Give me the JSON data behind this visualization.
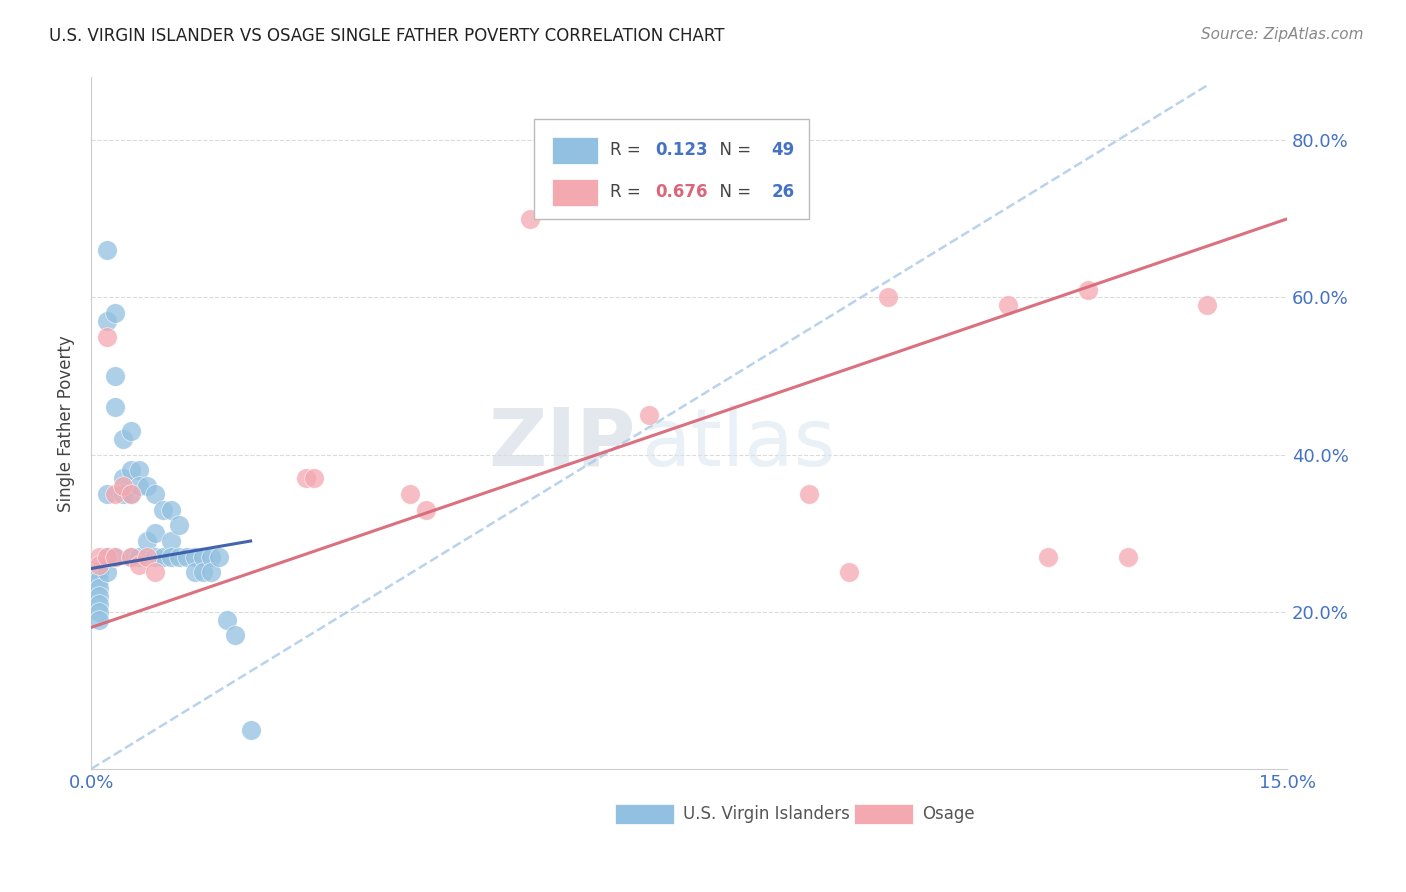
{
  "title": "U.S. VIRGIN ISLANDER VS OSAGE SINGLE FATHER POVERTY CORRELATION CHART",
  "source": "Source: ZipAtlas.com",
  "ylabel": "Single Father Poverty",
  "xlim": [
    0.0,
    0.15
  ],
  "ylim": [
    0.0,
    0.88
  ],
  "xtick_positions": [
    0.0,
    0.03,
    0.06,
    0.09,
    0.12,
    0.15
  ],
  "xticklabels": [
    "0.0%",
    "",
    "",
    "",
    "",
    "15.0%"
  ],
  "ytick_vals_right": [
    0.2,
    0.4,
    0.6,
    0.8
  ],
  "ytick_labels_right": [
    "20.0%",
    "40.0%",
    "60.0%",
    "80.0%"
  ],
  "legend_r1_prefix": "R = ",
  "legend_r1_val": "0.123",
  "legend_n1_prefix": "N = ",
  "legend_n1_val": "49",
  "legend_r2_prefix": "R = ",
  "legend_r2_val": "0.676",
  "legend_n2_prefix": "N = ",
  "legend_n2_val": "26",
  "color_blue": "#92c0e0",
  "color_pink": "#f4a8b0",
  "color_blue_text": "#4472c4",
  "color_pink_text": "#d9667a",
  "color_trend_blue_dash": "#a8c8e8",
  "color_trend_blue_solid": "#3a5ca8",
  "color_trend_pink": "#d96878",
  "watermark_zip": "ZIP",
  "watermark_atlas": "atlas",
  "blue_x": [
    0.001,
    0.001,
    0.001,
    0.001,
    0.001,
    0.001,
    0.001,
    0.002,
    0.002,
    0.002,
    0.002,
    0.002,
    0.003,
    0.003,
    0.003,
    0.003,
    0.004,
    0.004,
    0.004,
    0.005,
    0.005,
    0.005,
    0.005,
    0.006,
    0.006,
    0.006,
    0.007,
    0.007,
    0.008,
    0.008,
    0.008,
    0.009,
    0.009,
    0.01,
    0.01,
    0.01,
    0.011,
    0.011,
    0.012,
    0.013,
    0.013,
    0.014,
    0.014,
    0.015,
    0.015,
    0.016,
    0.017,
    0.018,
    0.02
  ],
  "blue_y": [
    0.25,
    0.24,
    0.23,
    0.22,
    0.21,
    0.2,
    0.19,
    0.66,
    0.57,
    0.35,
    0.27,
    0.25,
    0.58,
    0.5,
    0.46,
    0.27,
    0.42,
    0.37,
    0.35,
    0.43,
    0.38,
    0.35,
    0.27,
    0.38,
    0.36,
    0.27,
    0.36,
    0.29,
    0.35,
    0.3,
    0.27,
    0.33,
    0.27,
    0.33,
    0.29,
    0.27,
    0.31,
    0.27,
    0.27,
    0.27,
    0.25,
    0.27,
    0.25,
    0.27,
    0.25,
    0.27,
    0.19,
    0.17,
    0.05
  ],
  "pink_x": [
    0.001,
    0.001,
    0.002,
    0.002,
    0.003,
    0.003,
    0.004,
    0.005,
    0.005,
    0.006,
    0.007,
    0.008,
    0.027,
    0.028,
    0.04,
    0.042,
    0.055,
    0.07,
    0.09,
    0.095,
    0.1,
    0.115,
    0.12,
    0.125,
    0.13,
    0.14
  ],
  "pink_y": [
    0.27,
    0.26,
    0.55,
    0.27,
    0.35,
    0.27,
    0.36,
    0.27,
    0.35,
    0.26,
    0.27,
    0.25,
    0.37,
    0.37,
    0.35,
    0.33,
    0.7,
    0.45,
    0.35,
    0.25,
    0.6,
    0.59,
    0.27,
    0.61,
    0.27,
    0.59
  ],
  "trend_blue_dash_x0": 0.0,
  "trend_blue_dash_y0": 0.0,
  "trend_blue_dash_x1": 0.14,
  "trend_blue_dash_y1": 0.87,
  "trend_blue_solid_x0": 0.0,
  "trend_blue_solid_y0": 0.255,
  "trend_blue_solid_x1": 0.02,
  "trend_blue_solid_y1": 0.29,
  "trend_pink_x0": 0.0,
  "trend_pink_y0": 0.18,
  "trend_pink_x1": 0.15,
  "trend_pink_y1": 0.7
}
